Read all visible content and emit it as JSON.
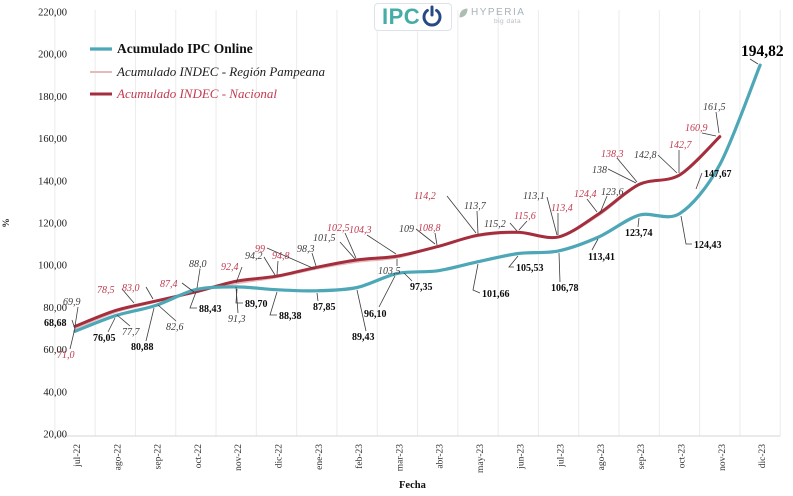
{
  "logo": {
    "brand": "IPC",
    "partner": "HYPERIA",
    "partner_sub": "big data"
  },
  "legend": [
    {
      "label": "Acumulado IPC Online",
      "color": "#4da7b6"
    },
    {
      "label": "Acumulado INDEC - Región Pampeana",
      "color": "#e6b9bb"
    },
    {
      "label": "Acumulado INDEC - Nacional",
      "color": "#a42e3d"
    }
  ],
  "axes": {
    "y_title": "%",
    "x_title": "Fecha",
    "y_ticks": [
      "220,00",
      "200,00",
      "180,00",
      "160,00",
      "140,00",
      "120,00",
      "100,00",
      "80,00",
      "60,00",
      "40,00",
      "20,00"
    ]
  },
  "chart_data": {
    "type": "line",
    "x": [
      "jul-22",
      "ago-22",
      "sep-22",
      "oct-22",
      "nov-22",
      "dic-22",
      "ene-23",
      "feb-23",
      "mar-23",
      "abr-23",
      "may-23",
      "jun-23",
      "jul-23",
      "ago-23",
      "sep-23",
      "oct-23",
      "nov-23",
      "dic-23"
    ],
    "ylim": [
      20,
      220
    ],
    "y_step": 20,
    "grid": "vertical",
    "legend_position": "top-left",
    "series": [
      {
        "name": "Acumulado IPC Online",
        "color": "#4da7b6",
        "values": [
          68.68,
          76.05,
          80.88,
          88.43,
          89.7,
          88.38,
          87.85,
          89.43,
          96.1,
          97.35,
          101.66,
          105.53,
          106.78,
          113.41,
          123.74,
          124.43,
          147.67,
          194.82
        ],
        "labels": [
          "68,68",
          "76,05",
          "80,88",
          "88,43",
          "89,70",
          "88,38",
          "87,85",
          "89,43",
          "96,10",
          "97,35",
          "101,66",
          "105,53",
          "106,78",
          "113,41",
          "123,74",
          "124,43",
          "147,67",
          "194,82"
        ]
      },
      {
        "name": "Acumulado INDEC - Región Pampeana",
        "color": "#e6b9bb",
        "values": [
          69.9,
          77.7,
          82.6,
          88.0,
          91.3,
          94.2,
          98.3,
          101.5,
          103.5,
          109,
          113.7,
          115.2,
          113.1,
          123.6,
          138,
          142.8,
          161.5
        ],
        "labels": [
          "69,9",
          "77,7",
          "82,6",
          "88,0",
          "91,3",
          "94,2",
          "98,3",
          "101,5",
          "103,5",
          "109",
          "113,7",
          "115,2",
          "113,1",
          "123,6",
          "138",
          "142,8",
          "161,5"
        ]
      },
      {
        "name": "Acumulado INDEC - Nacional",
        "color": "#a42e3d",
        "values": [
          71.0,
          78.5,
          83.0,
          87.4,
          92.4,
          94.8,
          99,
          102.5,
          104.3,
          108.8,
          114.2,
          115.6,
          113.4,
          124.4,
          138.3,
          142.7,
          160.9
        ],
        "labels": [
          "71,0",
          "78,5",
          "83,0",
          "87,4",
          "92,4",
          "94,8",
          "99",
          "102,5",
          "104,3",
          "108,8",
          "114,2",
          "115,6",
          "113,4",
          "124,4",
          "138,3",
          "142,7",
          "160,9"
        ]
      }
    ]
  }
}
